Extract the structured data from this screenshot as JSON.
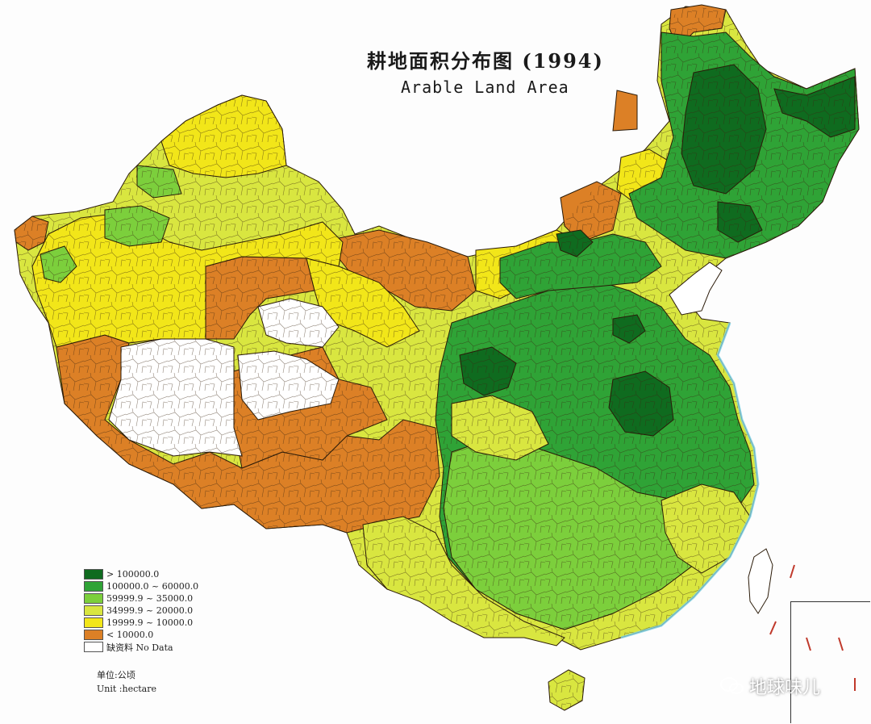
{
  "title": {
    "zh": "耕地面积分布图 (1994)",
    "en": "Arable Land Area"
  },
  "colors": {
    "c1": "#0f6b1f",
    "c2": "#2fa336",
    "c3": "#7ccf3c",
    "c4": "#d9e640",
    "c5": "#f2e619",
    "c6": "#dc8026",
    "nodata": "#ffffff",
    "border": "#4a2a10"
  },
  "legend": [
    {
      "color": "#0f6b1f",
      "label": "> 100000.0"
    },
    {
      "color": "#2fa336",
      "label": "100000.0 ~ 60000.0"
    },
    {
      "color": "#7ccf3c",
      "label": "59999.9 ~ 35000.0"
    },
    {
      "color": "#d9e640",
      "label": "34999.9 ~ 20000.0"
    },
    {
      "color": "#f2e619",
      "label": "19999.9 ~ 10000.0"
    },
    {
      "color": "#dc8026",
      "label": "< 10000.0"
    },
    {
      "color": "#ffffff",
      "label": "缺资料 No Data"
    }
  ],
  "unit": {
    "zh": "单位:公顷",
    "en": "Unit :hectare"
  },
  "watermark": "地球味儿"
}
